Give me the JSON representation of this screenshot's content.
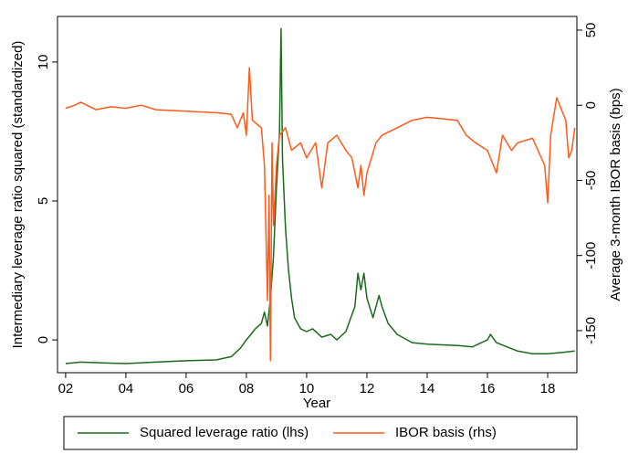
{
  "chart_data": {
    "type": "line",
    "xlabel": "Year",
    "ylabel": "Intermediary leverage ratio squared (standardized)",
    "y2label": "Average 3-month IBOR basis (bps)",
    "xlim": [
      1.73,
      18.97
    ],
    "xticks": [
      {
        "value": 2,
        "label": "02"
      },
      {
        "value": 4,
        "label": "04"
      },
      {
        "value": 6,
        "label": "06"
      },
      {
        "value": 8,
        "label": "08"
      },
      {
        "value": 10,
        "label": "10"
      },
      {
        "value": 12,
        "label": "12"
      },
      {
        "value": 14,
        "label": "14"
      },
      {
        "value": 16,
        "label": "16"
      },
      {
        "value": 18,
        "label": "18"
      }
    ],
    "ylim": [
      -1.18,
      11.64
    ],
    "yticks": [
      0,
      5,
      10
    ],
    "y2lim": [
      -178,
      59.1
    ],
    "y2ticks": [
      50,
      0,
      -50,
      -100,
      -150
    ],
    "legend": "bottom",
    "series": [
      {
        "name": "Squared leverage ratio (lhs)",
        "color": "#1a6b1a",
        "x": [
          2.0,
          2.5,
          3.0,
          4.0,
          5.0,
          6.0,
          7.0,
          7.5,
          7.8,
          8.0,
          8.3,
          8.5,
          8.6,
          8.7,
          8.8,
          8.9,
          9.0,
          9.1,
          9.15,
          9.2,
          9.3,
          9.4,
          9.5,
          9.6,
          9.8,
          10.0,
          10.2,
          10.5,
          10.8,
          11.0,
          11.3,
          11.6,
          11.7,
          11.8,
          11.9,
          12.0,
          12.2,
          12.4,
          12.5,
          12.7,
          13.0,
          13.5,
          14.0,
          15.0,
          15.5,
          16.0,
          16.1,
          16.3,
          17.0,
          17.5,
          18.0,
          18.5,
          18.9
        ],
        "values": [
          -0.85,
          -0.8,
          -0.82,
          -0.85,
          -0.8,
          -0.75,
          -0.72,
          -0.6,
          -0.3,
          0.0,
          0.4,
          0.6,
          1.0,
          0.5,
          1.5,
          3.0,
          5.5,
          7.5,
          11.2,
          6.5,
          4.0,
          2.5,
          1.5,
          0.8,
          0.4,
          0.3,
          0.4,
          0.1,
          0.2,
          0.0,
          0.3,
          1.2,
          2.4,
          1.8,
          2.4,
          1.5,
          0.8,
          1.6,
          1.2,
          0.6,
          0.2,
          -0.1,
          -0.15,
          -0.2,
          -0.25,
          0.0,
          0.2,
          -0.1,
          -0.4,
          -0.5,
          -0.5,
          -0.45,
          -0.4
        ]
      },
      {
        "name": "IBOR basis (rhs)",
        "color": "#ff5a1a",
        "axis": "y2",
        "x": [
          2.0,
          2.3,
          2.5,
          3.0,
          3.5,
          4.0,
          4.5,
          5.0,
          6.0,
          7.0,
          7.5,
          7.7,
          7.9,
          8.0,
          8.1,
          8.2,
          8.5,
          8.6,
          8.7,
          8.75,
          8.8,
          8.85,
          8.9,
          9.0,
          9.1,
          9.3,
          9.5,
          9.8,
          10.0,
          10.3,
          10.5,
          10.7,
          11.0,
          11.3,
          11.5,
          11.7,
          11.8,
          11.9,
          12.0,
          12.3,
          12.5,
          13.0,
          13.5,
          14.0,
          15.0,
          15.3,
          15.6,
          16.0,
          16.3,
          16.5,
          16.8,
          17.0,
          17.5,
          17.9,
          18.0,
          18.1,
          18.3,
          18.5,
          18.6,
          18.7,
          18.8,
          18.9
        ],
        "values": [
          -2,
          0,
          2,
          -3,
          -1,
          -2,
          0,
          -3,
          -4,
          -5,
          -6,
          -15,
          -5,
          -20,
          25,
          -10,
          -15,
          -40,
          -130,
          -60,
          -170,
          -25,
          -80,
          -40,
          -20,
          -15,
          -30,
          -25,
          -35,
          -25,
          -55,
          -25,
          -20,
          -30,
          -35,
          -55,
          -40,
          -60,
          -45,
          -25,
          -20,
          -15,
          -10,
          -8,
          -10,
          -20,
          -25,
          -30,
          -45,
          -20,
          -30,
          -25,
          -22,
          -40,
          -65,
          -20,
          5,
          -5,
          -10,
          -35,
          -30,
          -15
        ]
      }
    ]
  }
}
